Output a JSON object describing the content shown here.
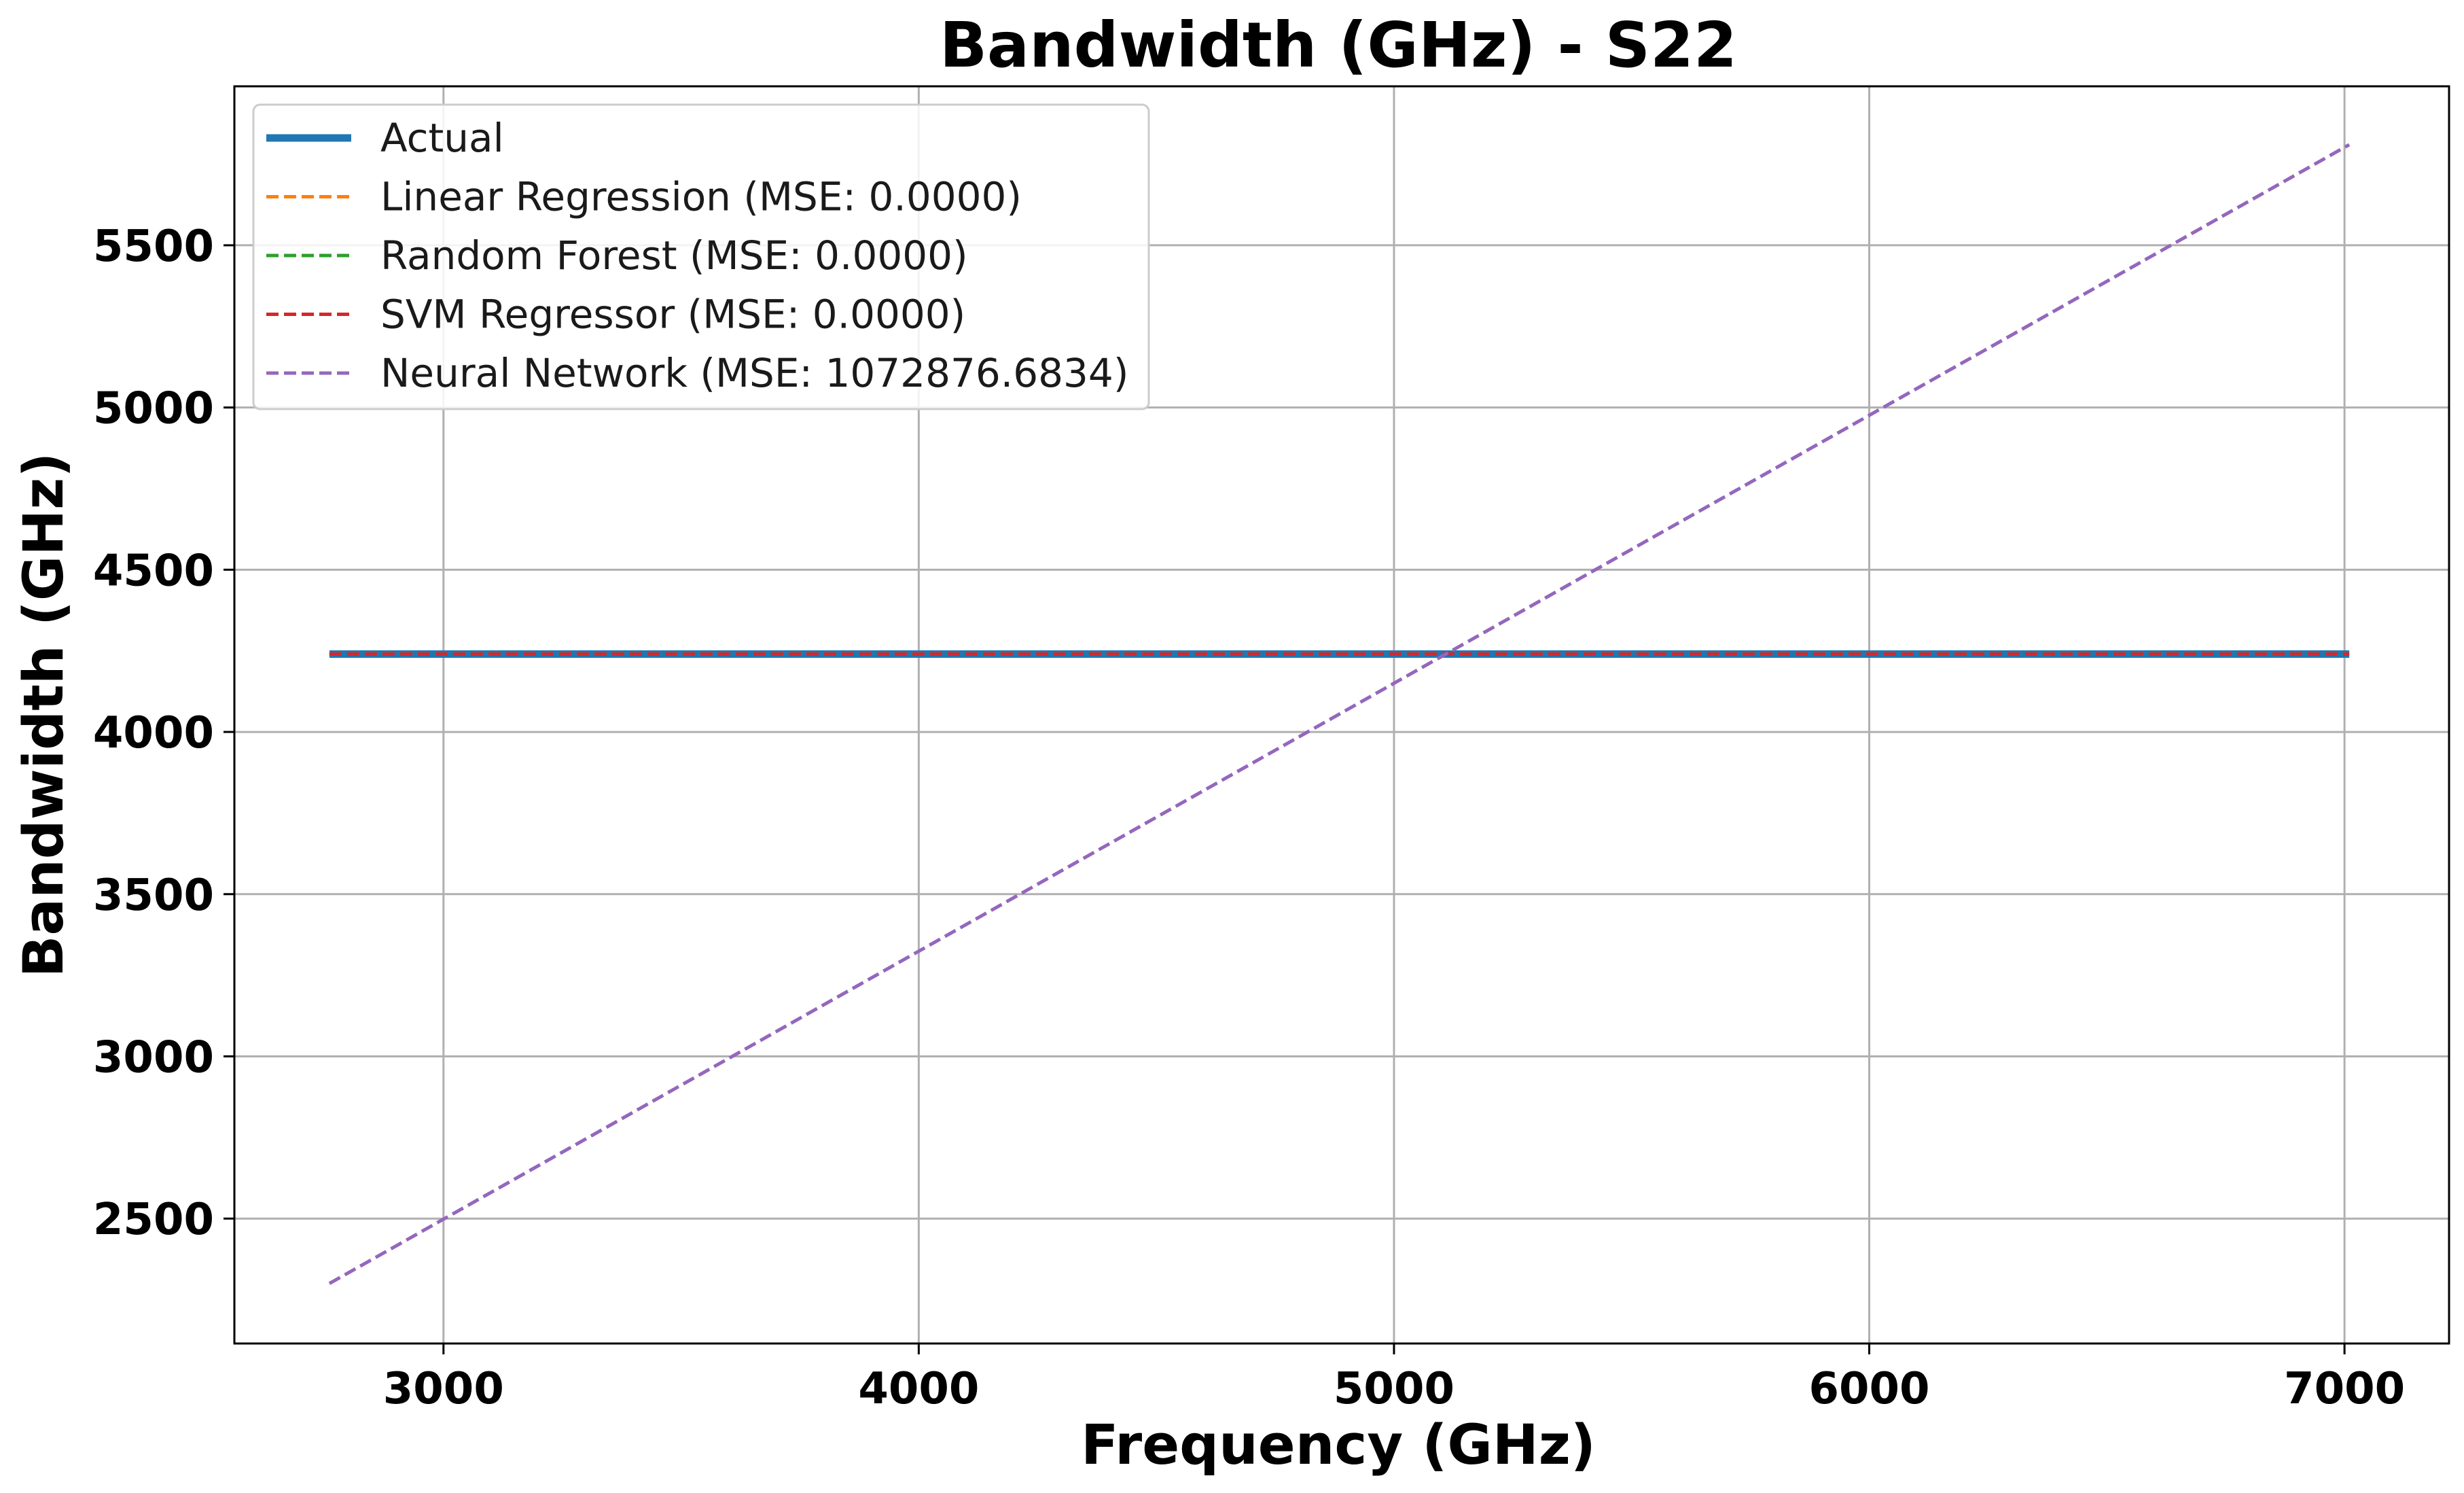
{
  "chart_data": {
    "type": "line",
    "title": "Bandwidth (GHz) - S22",
    "xlabel": "Frequency (GHz)",
    "ylabel": "Bandwidth (GHz)",
    "xlim": [
      2560,
      7220
    ],
    "ylim": [
      2115,
      5990
    ],
    "xticks": [
      3000,
      4000,
      5000,
      6000,
      7000
    ],
    "yticks": [
      2500,
      3000,
      3500,
      4000,
      4500,
      5000,
      5500
    ],
    "grid": true,
    "legend_position": "top-left",
    "series": [
      {
        "name": "Actual",
        "color": "#1f77b4",
        "style": "solid",
        "x": [
          2760,
          7010
        ],
        "y": [
          4240,
          4240
        ]
      },
      {
        "name": "Linear Regression (MSE: 0.0000)",
        "color": "#ff7f0e",
        "style": "dashed",
        "x": [
          2760,
          7010
        ],
        "y": [
          4240,
          4240
        ]
      },
      {
        "name": "Random Forest (MSE: 0.0000)",
        "color": "#2ca02c",
        "style": "dashed",
        "x": [
          2760,
          7010
        ],
        "y": [
          4240,
          4240
        ]
      },
      {
        "name": "SVM Regressor (MSE: 0.0000)",
        "color": "#d62728",
        "style": "dashed",
        "x": [
          2760,
          7010
        ],
        "y": [
          4240,
          4240
        ]
      },
      {
        "name": "Neural Network (MSE: 1072876.6834)",
        "color": "#9467bd",
        "style": "dashed",
        "x": [
          2760,
          7010
        ],
        "y": [
          2300,
          5810
        ]
      }
    ]
  }
}
